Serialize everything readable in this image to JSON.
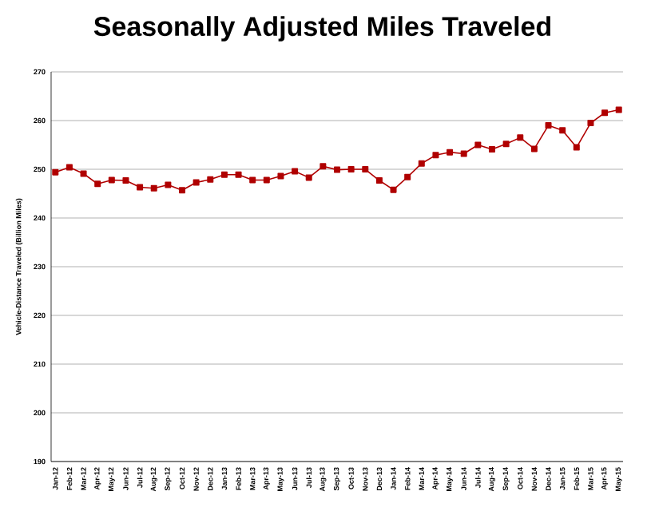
{
  "chart_data": {
    "type": "line",
    "title": "Seasonally Adjusted Miles Traveled",
    "ylabel": "Vehicle-Distance Traveled (Billion Miles)",
    "categories": [
      "Jan-12",
      "Feb-12",
      "Mar-12",
      "Apr-12",
      "May-12",
      "Jun-12",
      "Jul-12",
      "Aug-12",
      "Sep-12",
      "Oct-12",
      "Nov-12",
      "Dec-12",
      "Jan-13",
      "Feb-13",
      "Mar-13",
      "Apr-13",
      "May-13",
      "Jun-13",
      "Jul-13",
      "Aug-13",
      "Sep-13",
      "Oct-13",
      "Nov-13",
      "Dec-13",
      "Jan-14",
      "Feb-14",
      "Mar-14",
      "Apr-14",
      "May-14",
      "Jun-14",
      "Jul-14",
      "Aug-14",
      "Sep-14",
      "Oct-14",
      "Nov-14",
      "Dec-14",
      "Jan-15",
      "Feb-15",
      "Mar-15",
      "Apr-15",
      "May-15"
    ],
    "series": [
      {
        "color": "#b00000",
        "values": [
          249.4,
          250.4,
          249.1,
          247.0,
          247.8,
          247.7,
          246.3,
          246.1,
          246.8,
          245.7,
          247.3,
          247.9,
          248.9,
          248.9,
          247.8,
          247.8,
          248.6,
          249.6,
          248.3,
          250.6,
          249.9,
          250.0,
          250.0,
          247.7,
          245.8,
          248.4,
          251.2,
          252.9,
          253.5,
          253.2,
          255.0,
          254.1,
          255.2,
          256.5,
          254.2,
          259.0,
          258.0,
          254.5,
          259.5,
          261.6,
          262.2
        ]
      }
    ],
    "ylim": [
      190,
      270
    ],
    "yticks": [
      190,
      200,
      210,
      220,
      230,
      240,
      250,
      260,
      270
    ],
    "grid": "y",
    "marker": "square",
    "line_style": "solid"
  }
}
